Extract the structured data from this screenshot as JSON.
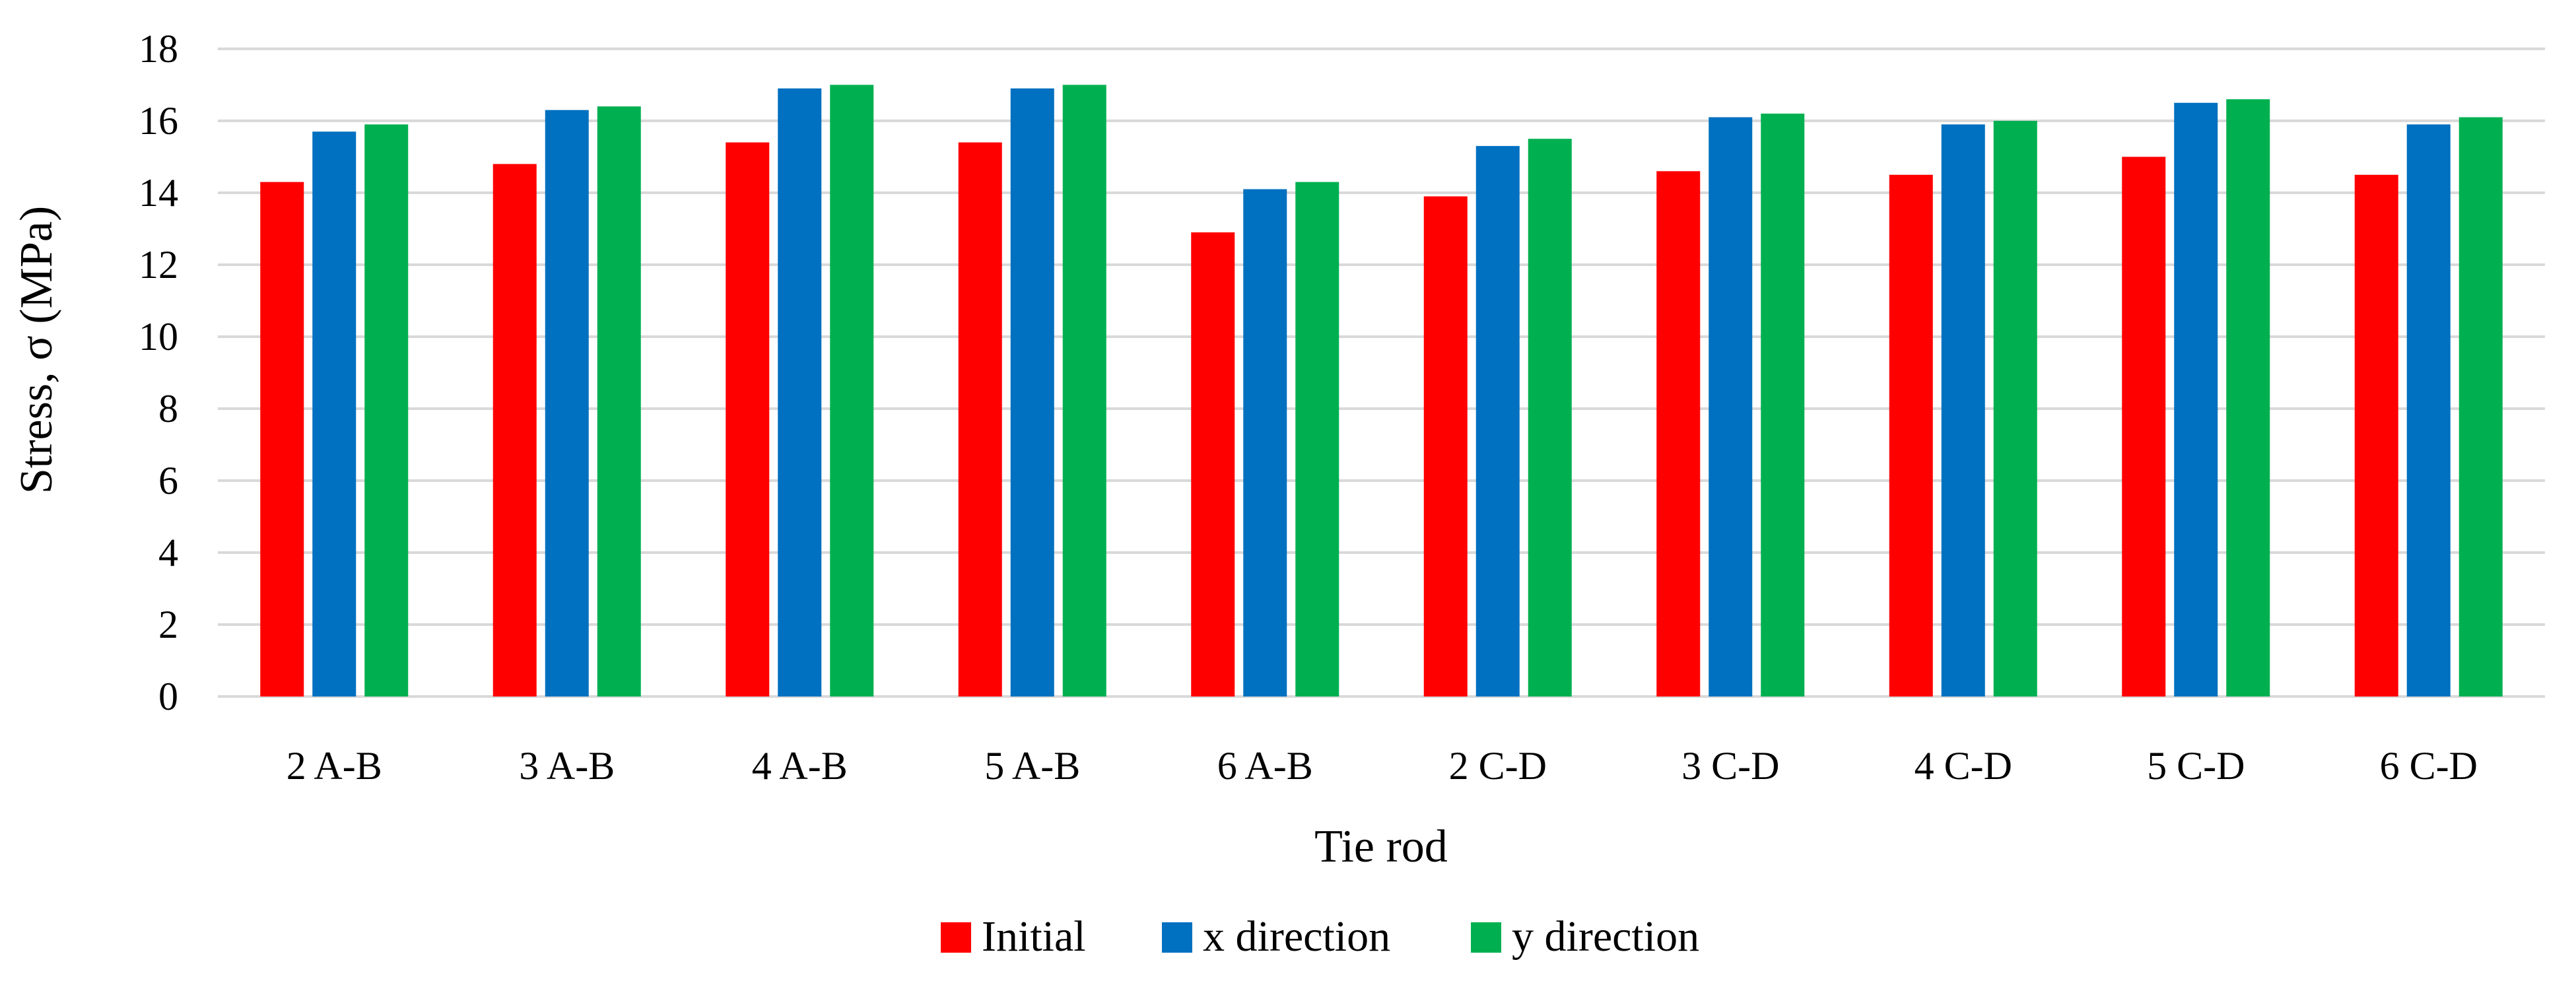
{
  "chart_data": {
    "type": "bar",
    "title": "",
    "xlabel": "Tie rod",
    "ylabel": "Stress, σ (MPa)",
    "ylim": [
      0,
      18
    ],
    "ytick_step": 2,
    "yticks": [
      "0",
      "2",
      "4",
      "6",
      "8",
      "10",
      "12",
      "14",
      "16",
      "18"
    ],
    "grid": true,
    "legend_position": "bottom-center",
    "categories": [
      "2 A-B",
      "3 A-B",
      "4 A-B",
      "5 A-B",
      "6 A-B",
      "2 C-D",
      "3 C-D",
      "4 C-D",
      "5 C-D",
      "6 C-D"
    ],
    "series": [
      {
        "name": "Initial",
        "color": "#ff0000",
        "values": [
          14.3,
          14.8,
          15.4,
          15.4,
          12.9,
          13.9,
          14.6,
          14.5,
          15.0,
          14.5
        ]
      },
      {
        "name": "x direction",
        "color": "#0070c0",
        "values": [
          15.7,
          16.3,
          16.9,
          16.9,
          14.1,
          15.3,
          16.1,
          15.9,
          16.5,
          15.9
        ]
      },
      {
        "name": "y direction",
        "color": "#00b050",
        "values": [
          15.9,
          16.4,
          17.0,
          17.0,
          14.3,
          15.5,
          16.2,
          16.0,
          16.6,
          16.1
        ]
      }
    ]
  }
}
